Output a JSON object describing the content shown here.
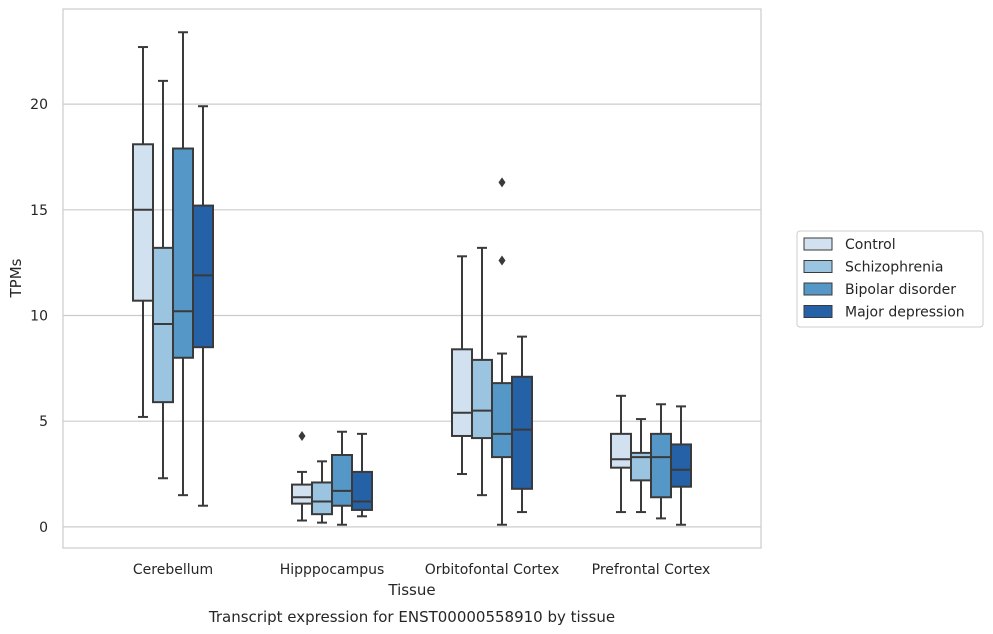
{
  "caption": "Transcript expression for ENST00000558910 by tissue",
  "chart_data": {
    "type": "box",
    "title": "",
    "xlabel": "Tissue",
    "ylabel": "TPMs",
    "ylim": [
      -1,
      24.5
    ],
    "yticks": [
      0,
      5,
      10,
      15,
      20
    ],
    "grid": "horizontal",
    "legend_position": "right",
    "categories": [
      "Cerebellum",
      "Hipppocampus",
      "Orbitofontal Cortex",
      "Prefrontal Cortex"
    ],
    "series": [
      {
        "name": "Control",
        "color": "#d2e1f0",
        "boxes": [
          {
            "whisker_low": 5.2,
            "q1": 10.7,
            "median": 15.0,
            "q3": 18.1,
            "whisker_high": 22.7,
            "outliers": []
          },
          {
            "whisker_low": 0.3,
            "q1": 1.1,
            "median": 1.4,
            "q3": 2.0,
            "whisker_high": 2.6,
            "outliers": [
              4.3
            ]
          },
          {
            "whisker_low": 2.5,
            "q1": 4.3,
            "median": 5.4,
            "q3": 8.4,
            "whisker_high": 12.8,
            "outliers": []
          },
          {
            "whisker_low": 0.7,
            "q1": 2.8,
            "median": 3.2,
            "q3": 4.4,
            "whisker_high": 6.2,
            "outliers": []
          }
        ]
      },
      {
        "name": "Schizophrenia",
        "color": "#9ac4e0",
        "boxes": [
          {
            "whisker_low": 2.3,
            "q1": 5.9,
            "median": 9.6,
            "q3": 13.2,
            "whisker_high": 21.1,
            "outliers": []
          },
          {
            "whisker_low": 0.2,
            "q1": 0.6,
            "median": 1.2,
            "q3": 2.1,
            "whisker_high": 3.1,
            "outliers": []
          },
          {
            "whisker_low": 1.5,
            "q1": 4.2,
            "median": 5.5,
            "q3": 7.9,
            "whisker_high": 13.2,
            "outliers": []
          },
          {
            "whisker_low": 0.7,
            "q1": 2.2,
            "median": 3.3,
            "q3": 3.5,
            "whisker_high": 5.1,
            "outliers": []
          }
        ]
      },
      {
        "name": "Bipolar disorder",
        "color": "#5597c6",
        "boxes": [
          {
            "whisker_low": 1.5,
            "q1": 8.0,
            "median": 10.2,
            "q3": 17.9,
            "whisker_high": 23.4,
            "outliers": []
          },
          {
            "whisker_low": 0.1,
            "q1": 1.0,
            "median": 1.7,
            "q3": 3.4,
            "whisker_high": 4.5,
            "outliers": []
          },
          {
            "whisker_low": 0.1,
            "q1": 3.3,
            "median": 4.4,
            "q3": 6.8,
            "whisker_high": 8.2,
            "outliers": [
              12.6,
              16.3
            ]
          },
          {
            "whisker_low": 0.4,
            "q1": 1.4,
            "median": 3.3,
            "q3": 4.4,
            "whisker_high": 5.8,
            "outliers": []
          }
        ]
      },
      {
        "name": "Major depression",
        "color": "#2461a6",
        "boxes": [
          {
            "whisker_low": 1.0,
            "q1": 8.5,
            "median": 11.9,
            "q3": 15.2,
            "whisker_high": 19.9,
            "outliers": []
          },
          {
            "whisker_low": 0.5,
            "q1": 0.8,
            "median": 1.2,
            "q3": 2.6,
            "whisker_high": 4.4,
            "outliers": []
          },
          {
            "whisker_low": 0.7,
            "q1": 1.8,
            "median": 4.6,
            "q3": 7.1,
            "whisker_high": 9.0,
            "outliers": []
          },
          {
            "whisker_low": 0.1,
            "q1": 1.9,
            "median": 2.7,
            "q3": 3.9,
            "whisker_high": 5.7,
            "outliers": []
          }
        ]
      }
    ]
  }
}
